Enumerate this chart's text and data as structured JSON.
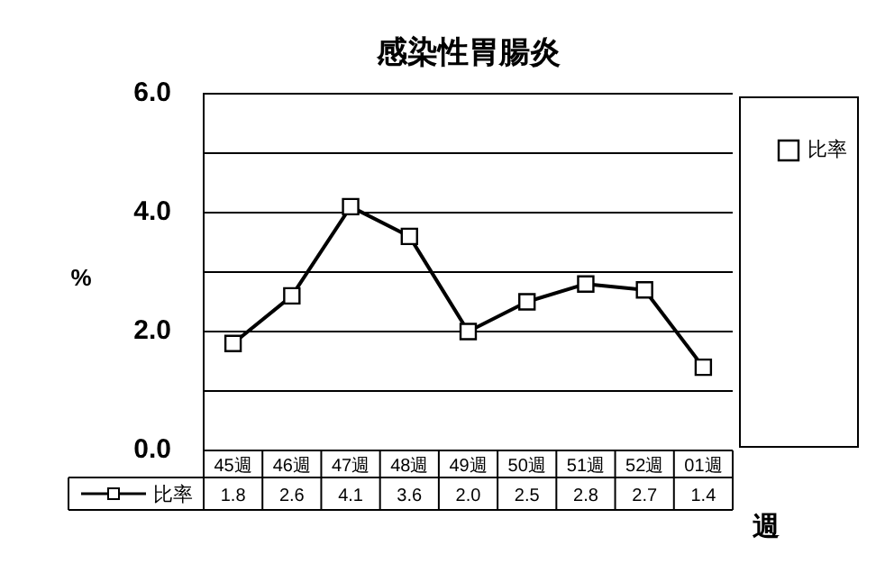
{
  "chart_data": {
    "type": "line",
    "title": "感染性胃腸炎",
    "ylabel": "%",
    "xlabel": "週",
    "categories": [
      "45週",
      "46週",
      "47週",
      "48週",
      "49週",
      "50週",
      "51週",
      "52週",
      "01週"
    ],
    "series": [
      {
        "name": "比率",
        "color": "#000000",
        "values": [
          1.8,
          2.6,
          4.1,
          3.6,
          2.0,
          2.5,
          2.8,
          2.7,
          1.4
        ],
        "value_labels": [
          "1.8",
          "2.6",
          "4.1",
          "3.6",
          "2.0",
          "2.5",
          "2.8",
          "2.7",
          "1.4"
        ]
      }
    ],
    "ylim": [
      0,
      6
    ],
    "yticks": [
      {
        "value": 0,
        "label": "0.0"
      },
      {
        "value": 1,
        "label": null
      },
      {
        "value": 2,
        "label": "2.0"
      },
      {
        "value": 3,
        "label": null
      },
      {
        "value": 4,
        "label": "4.0"
      },
      {
        "value": 5,
        "label": null
      },
      {
        "value": 6,
        "label": "6.0"
      }
    ],
    "grid": "y",
    "legend": "top right",
    "marker": "square",
    "line_style": "solid"
  }
}
